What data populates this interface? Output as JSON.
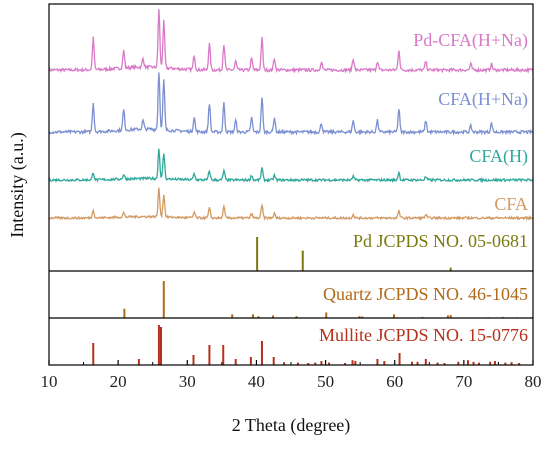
{
  "chart_data": {
    "type": "line",
    "title": "",
    "xlabel": "2 Theta (degree)",
    "ylabel": "Intensity (a.u.)",
    "xlim": [
      10,
      80
    ],
    "xticks": [
      10,
      20,
      30,
      40,
      50,
      60,
      70,
      80
    ],
    "yticks_shown": false,
    "legend": "labels placed at right above each curve",
    "series": [
      {
        "name": "Pd-CFA(H+Na)",
        "color": "#d979c8",
        "peaks": [
          [
            16.4,
            0.55
          ],
          [
            20.8,
            0.3
          ],
          [
            23.6,
            0.15
          ],
          [
            25.9,
            1.0
          ],
          [
            26.6,
            0.8
          ],
          [
            31.0,
            0.25
          ],
          [
            33.2,
            0.45
          ],
          [
            35.3,
            0.45
          ],
          [
            37.0,
            0.15
          ],
          [
            39.3,
            0.2
          ],
          [
            40.8,
            0.55
          ],
          [
            42.6,
            0.2
          ],
          [
            49.4,
            0.15
          ],
          [
            54.0,
            0.2
          ],
          [
            57.5,
            0.15
          ],
          [
            60.6,
            0.35
          ],
          [
            64.5,
            0.15
          ],
          [
            71.0,
            0.1
          ],
          [
            74.0,
            0.1
          ]
        ]
      },
      {
        "name": "CFA(H+Na)",
        "color": "#7b8fd1",
        "peaks": [
          [
            16.4,
            0.5
          ],
          [
            20.8,
            0.35
          ],
          [
            23.6,
            0.15
          ],
          [
            25.9,
            1.0
          ],
          [
            26.6,
            0.85
          ],
          [
            31.0,
            0.25
          ],
          [
            33.2,
            0.5
          ],
          [
            35.3,
            0.5
          ],
          [
            37.0,
            0.2
          ],
          [
            39.3,
            0.25
          ],
          [
            40.8,
            0.6
          ],
          [
            42.6,
            0.25
          ],
          [
            49.4,
            0.15
          ],
          [
            54.0,
            0.2
          ],
          [
            57.5,
            0.2
          ],
          [
            60.6,
            0.4
          ],
          [
            64.5,
            0.2
          ],
          [
            71.0,
            0.1
          ],
          [
            74.0,
            0.15
          ]
        ]
      },
      {
        "name": "CFA(H)",
        "color": "#2ea89a",
        "peaks": [
          [
            16.4,
            0.25
          ],
          [
            20.8,
            0.15
          ],
          [
            25.9,
            1.0
          ],
          [
            26.6,
            0.85
          ],
          [
            31.0,
            0.2
          ],
          [
            33.2,
            0.3
          ],
          [
            35.3,
            0.3
          ],
          [
            39.3,
            0.15
          ],
          [
            40.8,
            0.4
          ],
          [
            42.6,
            0.15
          ],
          [
            54.0,
            0.12
          ],
          [
            60.6,
            0.25
          ],
          [
            64.5,
            0.1
          ]
        ]
      },
      {
        "name": "CFA",
        "color": "#d29a62",
        "peaks": [
          [
            16.4,
            0.3
          ],
          [
            20.8,
            0.15
          ],
          [
            25.9,
            1.0
          ],
          [
            26.6,
            0.8
          ],
          [
            31.0,
            0.2
          ],
          [
            33.2,
            0.35
          ],
          [
            35.3,
            0.4
          ],
          [
            39.3,
            0.15
          ],
          [
            40.8,
            0.45
          ],
          [
            42.6,
            0.15
          ],
          [
            54.0,
            0.12
          ],
          [
            60.6,
            0.25
          ],
          [
            64.5,
            0.12
          ]
        ]
      }
    ],
    "references": [
      {
        "name": "Pd JCPDS NO. 05-0681",
        "color": "#7a7a10",
        "lines": [
          [
            40.1,
            1.0
          ],
          [
            46.7,
            0.6
          ],
          [
            68.1,
            0.1
          ]
        ]
      },
      {
        "name": "Quartz JCPDS NO. 46-1045",
        "color": "#b06a1a",
        "lines": [
          [
            20.9,
            0.25
          ],
          [
            26.6,
            1.0
          ],
          [
            36.5,
            0.1
          ],
          [
            39.5,
            0.1
          ],
          [
            40.3,
            0.05
          ],
          [
            42.4,
            0.07
          ],
          [
            45.8,
            0.05
          ],
          [
            50.1,
            0.15
          ],
          [
            54.9,
            0.05
          ],
          [
            55.3,
            0.04
          ],
          [
            59.9,
            0.1
          ],
          [
            64.0,
            0.03
          ],
          [
            67.7,
            0.07
          ],
          [
            68.1,
            0.08
          ],
          [
            73.5,
            0.02
          ],
          [
            75.6,
            0.03
          ],
          [
            77.7,
            0.02
          ],
          [
            79.9,
            0.02
          ]
        ]
      },
      {
        "name": "Mullite JCPDS NO. 15-0776",
        "color": "#b5311c",
        "lines": [
          [
            16.4,
            0.55
          ],
          [
            23.0,
            0.15
          ],
          [
            25.9,
            1.0
          ],
          [
            26.2,
            0.95
          ],
          [
            30.9,
            0.25
          ],
          [
            33.2,
            0.5
          ],
          [
            35.2,
            0.5
          ],
          [
            37.0,
            0.15
          ],
          [
            39.2,
            0.2
          ],
          [
            40.8,
            0.6
          ],
          [
            42.5,
            0.2
          ],
          [
            44.0,
            0.07
          ],
          [
            46.0,
            0.06
          ],
          [
            47.5,
            0.05
          ],
          [
            48.5,
            0.06
          ],
          [
            49.4,
            0.1
          ],
          [
            50.5,
            0.06
          ],
          [
            52.8,
            0.05
          ],
          [
            53.9,
            0.12
          ],
          [
            54.3,
            0.1
          ],
          [
            57.5,
            0.15
          ],
          [
            58.5,
            0.1
          ],
          [
            60.7,
            0.3
          ],
          [
            62.5,
            0.08
          ],
          [
            63.3,
            0.08
          ],
          [
            64.5,
            0.15
          ],
          [
            66.2,
            0.06
          ],
          [
            67.2,
            0.05
          ],
          [
            69.2,
            0.08
          ],
          [
            70.6,
            0.12
          ],
          [
            71.4,
            0.08
          ],
          [
            72.2,
            0.06
          ],
          [
            73.8,
            0.08
          ],
          [
            74.5,
            0.1
          ],
          [
            76.0,
            0.06
          ],
          [
            76.9,
            0.07
          ],
          [
            78.0,
            0.05
          ]
        ]
      }
    ]
  }
}
